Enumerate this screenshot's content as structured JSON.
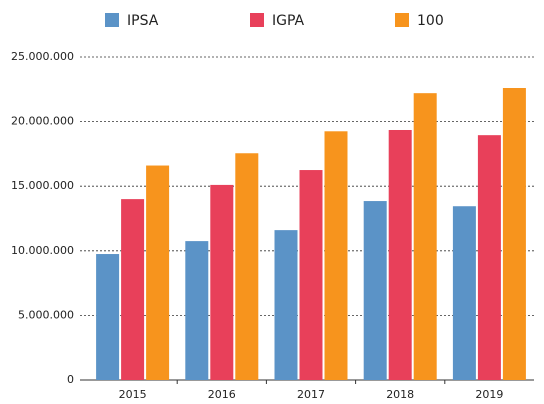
{
  "chart_data": {
    "type": "bar",
    "categories": [
      "2015",
      "2016",
      "2017",
      "2018",
      "2019"
    ],
    "series": [
      {
        "name": "IPSA",
        "color": "#5b93c7",
        "values": [
          9750000,
          10750000,
          11600000,
          13850000,
          13450000
        ]
      },
      {
        "name": "IGPA",
        "color": "#e8405a",
        "values": [
          14000000,
          15100000,
          16250000,
          19350000,
          18950000
        ]
      },
      {
        "name": "100",
        "color": "#f7941d",
        "values": [
          16600000,
          17550000,
          19250000,
          22200000,
          22600000
        ]
      }
    ],
    "ylim": [
      0,
      25000000
    ],
    "yticks": [
      0,
      {
        "value": 5000000,
        "label": "5.000.000"
      },
      {
        "value": 10000000,
        "label": "10.000.000"
      },
      {
        "value": 15000000,
        "label": "15.000.000"
      },
      {
        "value": 20000000,
        "label": "20.000.000"
      },
      {
        "value": 25000000,
        "label": "25.000.000"
      }
    ],
    "grid": true,
    "legend": "top"
  }
}
